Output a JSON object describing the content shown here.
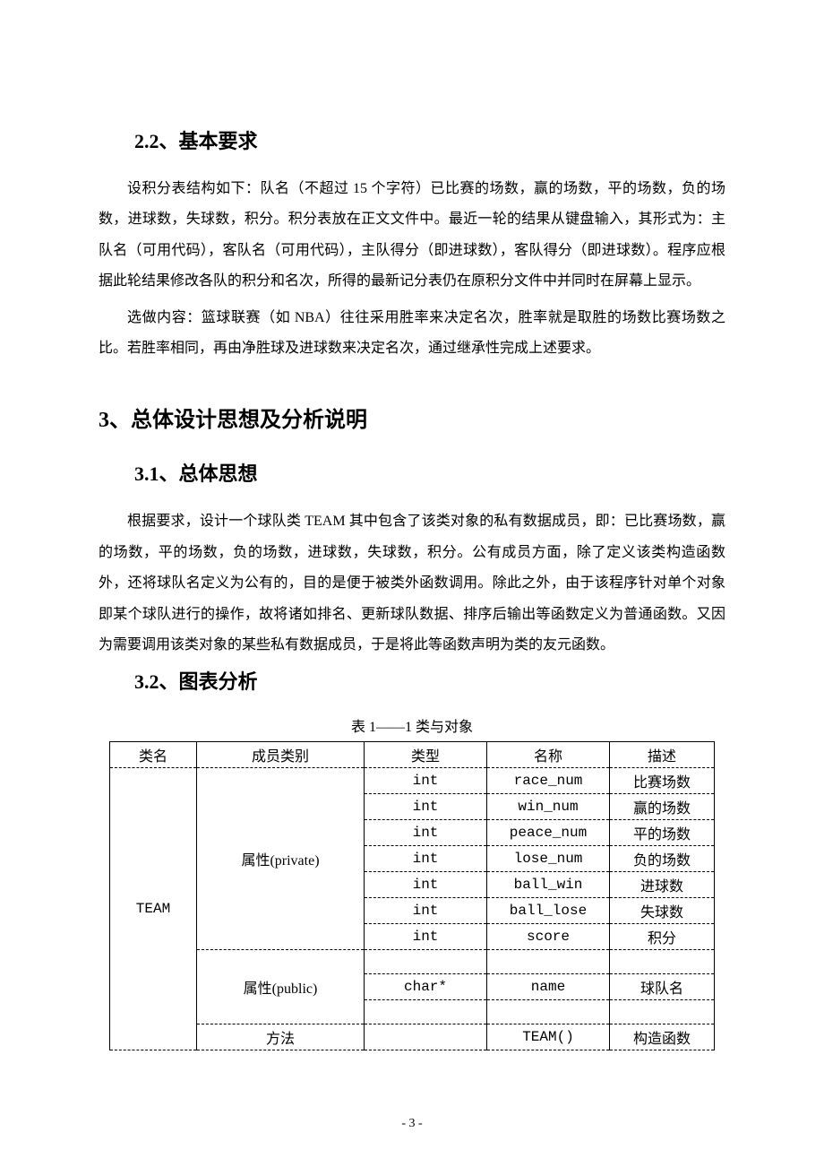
{
  "sections": {
    "s22_title": "2.2、基本要求",
    "s22_p1": "设积分表结构如下：队名（不超过 15 个字符）已比赛的场数，赢的场数，平的场数，负的场数，进球数，失球数，积分。积分表放在正文文件中。最近一轮的结果从键盘输入，其形式为：主队名（可用代码），客队名（可用代码），主队得分（即进球数），客队得分（即进球数）。程序应根据此轮结果修改各队的积分和名次，所得的最新记分表仍在原积分文件中并同时在屏幕上显示。",
    "s22_p2": "选做内容：篮球联赛（如 NBA）往往采用胜率来决定名次，胜率就是取胜的场数比赛场数之比。若胜率相同，再由净胜球及进球数来决定名次，通过继承性完成上述要求。",
    "s3_title": "3、总体设计思想及分析说明",
    "s31_title": "3.1、总体思想",
    "s31_p1": "根据要求，设计一个球队类 TEAM 其中包含了该类对象的私有数据成员，即：已比赛场数，赢的场数，平的场数，负的场数，进球数，失球数，积分。公有成员方面，除了定义该类构造函数外，还将球队名定义为公有的，目的是便于被类外函数调用。除此之外，由于该程序针对单个对象即某个球队进行的操作，故将诸如排名、更新球队数据、排序后输出等函数定义为普通函数。又因为需要调用该类对象的某些私有数据成员，于是将此等函数声明为类的友元函数。",
    "s32_title": "3.2、图表分析"
  },
  "table": {
    "caption": "表 1——1  类与对象",
    "headers": [
      "类名",
      "成员类别",
      "类型",
      "名称",
      "描述"
    ],
    "class_name": "TEAM",
    "groups": [
      {
        "category": "属性(private)",
        "rowspan": 7,
        "rows": [
          {
            "type": "int",
            "name": "race_num",
            "desc": "比赛场数"
          },
          {
            "type": "int",
            "name": "win_num",
            "desc": "赢的场数"
          },
          {
            "type": "int",
            "name": "peace_num",
            "desc": "平的场数"
          },
          {
            "type": "int",
            "name": "lose_num",
            "desc": "负的场数"
          },
          {
            "type": "int",
            "name": "ball_win",
            "desc": "进球数"
          },
          {
            "type": "int",
            "name": "ball_lose",
            "desc": "失球数"
          },
          {
            "type": "int",
            "name": "score",
            "desc": "积分"
          }
        ]
      },
      {
        "category": "属性(public)",
        "rowspan": 3,
        "rows": [
          {
            "type": "",
            "name": "",
            "desc": ""
          },
          {
            "type": "char*",
            "name": "name",
            "desc": "球队名"
          },
          {
            "type": "",
            "name": "",
            "desc": ""
          }
        ]
      },
      {
        "category": "方法",
        "rowspan": 1,
        "rows": [
          {
            "type": "",
            "name": "TEAM()",
            "desc": "构造函数"
          }
        ]
      }
    ]
  },
  "footer": "- 3 -"
}
